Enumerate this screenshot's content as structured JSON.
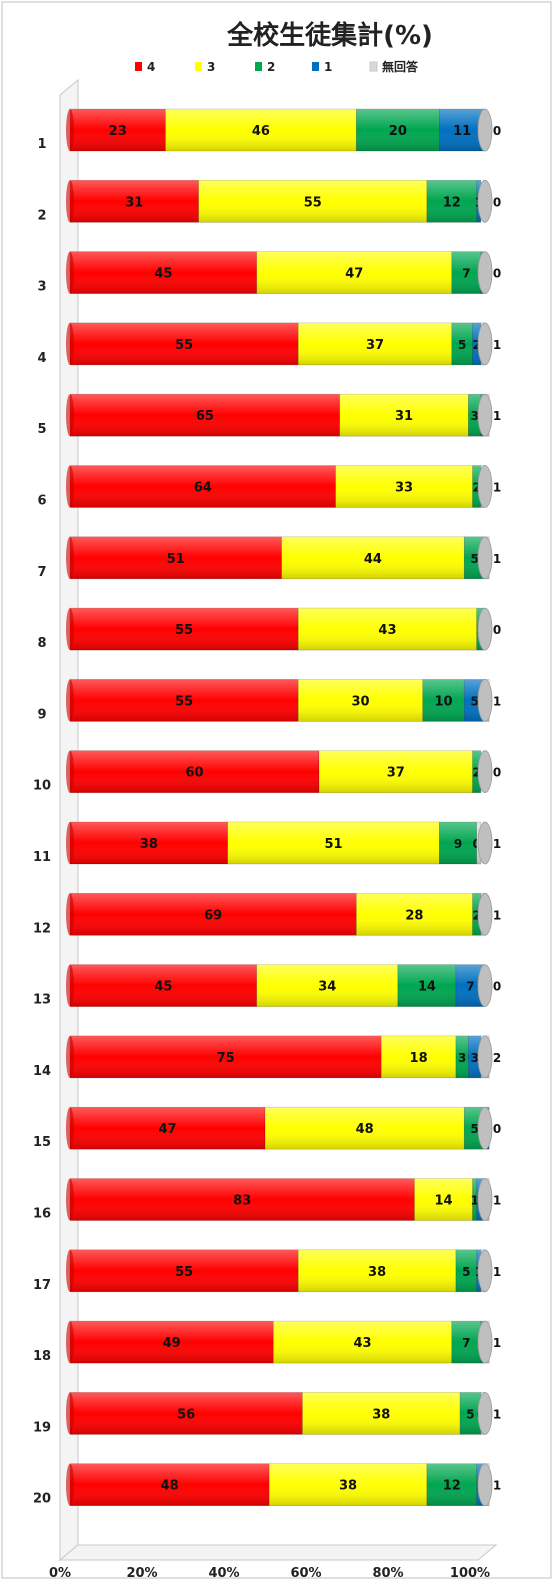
{
  "chart_data": {
    "type": "bar",
    "orientation": "horizontal",
    "stacked": true,
    "percent_stacked": true,
    "title": "全校生徒集計(%)",
    "xlabel": "",
    "ylabel": "",
    "xlim": [
      0,
      100
    ],
    "x_ticks": [
      "0%",
      "20%",
      "40%",
      "60%",
      "80%",
      "100%"
    ],
    "legend_position": "top",
    "grid": false,
    "categories": [
      "1",
      "2",
      "3",
      "4",
      "5",
      "6",
      "7",
      "8",
      "9",
      "10",
      "11",
      "12",
      "13",
      "14",
      "15",
      "16",
      "17",
      "18",
      "19",
      "20"
    ],
    "series": [
      {
        "name": "4",
        "color": "#ff0000",
        "values": [
          23,
          31,
          45,
          55,
          65,
          64,
          51,
          55,
          55,
          60,
          38,
          69,
          45,
          75,
          47,
          83,
          55,
          49,
          56,
          48
        ]
      },
      {
        "name": "3",
        "color": "#ffff00",
        "values": [
          46,
          55,
          47,
          37,
          31,
          33,
          44,
          43,
          30,
          37,
          51,
          28,
          34,
          18,
          48,
          14,
          38,
          43,
          38,
          38
        ]
      },
      {
        "name": "2",
        "color": "#00a650",
        "values": [
          20,
          12,
          7,
          5,
          3,
          2,
          5,
          2,
          10,
          2,
          9,
          2,
          14,
          3,
          5,
          1,
          5,
          7,
          5,
          12
        ]
      },
      {
        "name": "1",
        "color": "#0070c0",
        "values": [
          11,
          1,
          1,
          2,
          1,
          0,
          0,
          0,
          5,
          0,
          0,
          0,
          7,
          3,
          1,
          2,
          1,
          1,
          0,
          2
        ]
      },
      {
        "name": "無回答",
        "color": "#d9d9d9",
        "values": [
          0,
          0,
          0,
          1,
          1,
          1,
          1,
          0,
          1,
          0,
          1,
          1,
          0,
          2,
          0,
          1,
          1,
          1,
          1,
          1
        ]
      }
    ]
  }
}
